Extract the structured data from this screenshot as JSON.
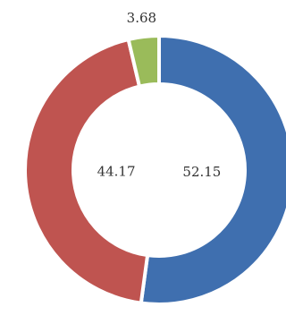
{
  "chart_data": {
    "type": "pie",
    "categories": [
      "Blue",
      "Red",
      "Green"
    ],
    "values": [
      52.15,
      44.17,
      3.68
    ],
    "colors": [
      "#3f6faf",
      "#bf5450",
      "#9abb5a"
    ]
  }
}
